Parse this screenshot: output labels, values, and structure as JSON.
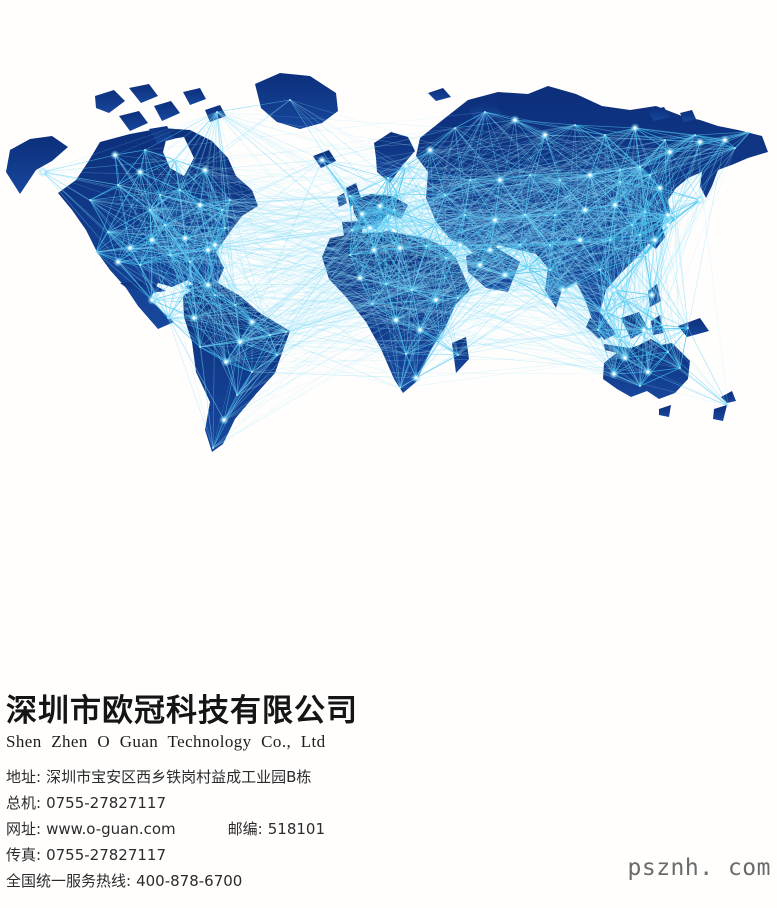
{
  "company": {
    "name_zh": "深圳市欧冠科技有限公司",
    "name_en": "Shen Zhen O Guan Technology Co., Ltd"
  },
  "contact": {
    "lines": [
      {
        "label": "地址:",
        "value": "深圳市宝安区西乡铁岗村益成工业园B栋"
      },
      {
        "label": "总机:",
        "value": "0755-27827117"
      },
      {
        "label": "网址:",
        "value": "www.o-guan.com",
        "extra_label": "邮编:",
        "extra_value": "518101"
      },
      {
        "label": "传真:",
        "value": "0755-27827117"
      },
      {
        "label": "全国统一服务热线:",
        "value": "400-878-6700"
      }
    ]
  },
  "watermark": "psznh. com",
  "map": {
    "description": "low-poly world map with glowing network connection lines",
    "colors": {
      "land_dark": "#0c2f7b",
      "land_light": "#17479c",
      "line_primary": "#3ec1ef",
      "line_secondary": "#54ccf3",
      "line_ocean": "#7fd9f6",
      "line_long": "#a9e7fa",
      "node_core": "#ffffff",
      "node_small": "#d9f4fd"
    }
  }
}
